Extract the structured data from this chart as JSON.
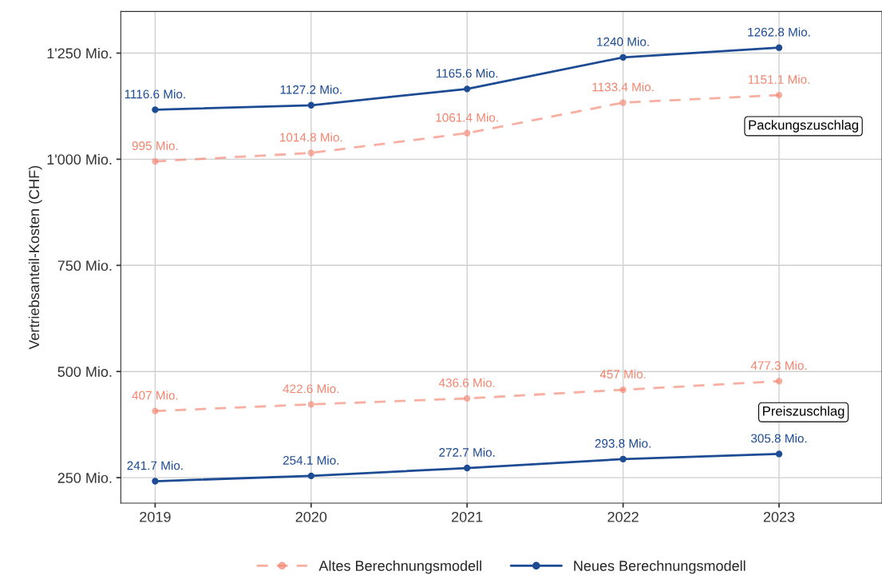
{
  "chart_data": {
    "type": "line",
    "ylabel": "Vertriebsanteil-Kosten (CHF)",
    "categories": [
      "2019",
      "2020",
      "2021",
      "2022",
      "2023"
    ],
    "series": [
      {
        "name": "Altes Berechnungsmodell",
        "color": "#f4846e",
        "line_style": "dashed",
        "values": [
          995,
          1014.8,
          1061.4,
          1133.4,
          1151.1
        ],
        "value_labels": [
          "995 Mio.",
          "1014.8 Mio.",
          "1061.4 Mio.",
          "1133.4 Mio.",
          "1151.1 Mio."
        ]
      },
      {
        "color": "#f4846e",
        "line_style": "dashed",
        "values": [
          407,
          422.6,
          436.6,
          457,
          477.3
        ],
        "value_labels": [
          "407 Mio.",
          "422.6 Mio.",
          "436.6 Mio.",
          "457 Mio.",
          "477.3 Mio."
        ]
      },
      {
        "name": "Neues Berechnungsmodell",
        "color": "#1d4b94",
        "line_style": "solid",
        "values": [
          1116.6,
          1127.2,
          1165.6,
          1240,
          1262.8
        ],
        "value_labels": [
          "1116.6 Mio.",
          "1127.2 Mio.",
          "1165.6 Mio.",
          "1240 Mio.",
          "1262.8 Mio."
        ]
      },
      {
        "color": "#1d4b94",
        "line_style": "solid",
        "values": [
          241.7,
          254.1,
          272.7,
          293.8,
          305.8
        ],
        "value_labels": [
          "241.7 Mio.",
          "254.1 Mio.",
          "272.7 Mio.",
          "293.8 Mio.",
          "305.8 Mio."
        ]
      }
    ],
    "annotations": [
      "Packungszuschlag",
      "Preiszuschlag"
    ],
    "ylim": [
      190,
      1348
    ],
    "yticks": [
      {
        "value": 250,
        "label": "250 Mio."
      },
      {
        "value": 500,
        "label": "500 Mio."
      },
      {
        "value": 750,
        "label": "750 Mio."
      },
      {
        "value": 1000,
        "label": "1'000 Mio."
      },
      {
        "value": 1250,
        "label": "1'250 Mio."
      }
    ],
    "grid": true,
    "legend": "bottom",
    "marker": "circle"
  }
}
